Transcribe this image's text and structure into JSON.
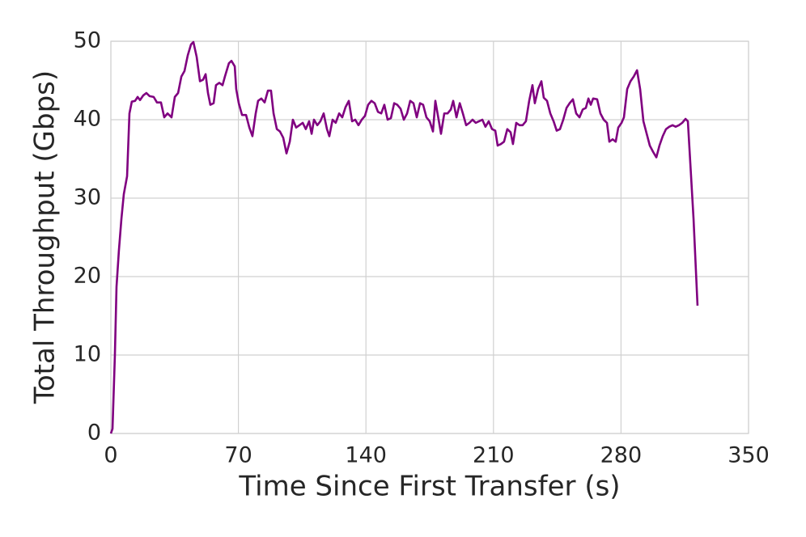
{
  "chart_data": {
    "type": "line",
    "xlabel": "Time Since First Transfer (s)",
    "ylabel": "Total Throughput (Gbps)",
    "xlim": [
      0,
      350
    ],
    "xticks": [
      0,
      70,
      140,
      210,
      280,
      350
    ],
    "ylim": [
      0,
      50
    ],
    "yticks": [
      0,
      10,
      20,
      30,
      40,
      50
    ],
    "grid": true,
    "series": [
      {
        "color": "#800080",
        "x": [
          0,
          0.9,
          2.2,
          3.1,
          4.4,
          5.8,
          7.1,
          8.9,
          10.2,
          11.5,
          13.3,
          14.7,
          16,
          17.8,
          19.5,
          21.3,
          23.5,
          25.3,
          27.5,
          29.3,
          31.1,
          33.3,
          35.1,
          36.9,
          38.7,
          40.4,
          42.2,
          44,
          45.3,
          47.1,
          48.9,
          50.6,
          52,
          53.3,
          54.6,
          56.4,
          57.7,
          59.5,
          61.3,
          62.6,
          64.8,
          66.2,
          68,
          68.8,
          70.2,
          72,
          74.2,
          76,
          77.7,
          79.5,
          80.8,
          82.6,
          84.4,
          86.2,
          87.9,
          89.3,
          91.1,
          92.8,
          94.6,
          96.4,
          98.2,
          99.9,
          101.7,
          103.5,
          105.3,
          107,
          108.8,
          110.2,
          111.5,
          113.3,
          115,
          116.8,
          118.6,
          119.9,
          121.7,
          123.4,
          125.3,
          127,
          128.8,
          130.6,
          132.4,
          134.1,
          135.9,
          137.7,
          139.5,
          141.2,
          143,
          144.8,
          146.6,
          148.4,
          150.1,
          151.9,
          153.7,
          155.5,
          157.2,
          159,
          160.8,
          162.6,
          164.3,
          166.1,
          167.9,
          169.7,
          171.4,
          173.2,
          175,
          176.8,
          178.1,
          179.9,
          181.2,
          183,
          184.8,
          186.6,
          187.9,
          189.7,
          191.5,
          193.2,
          195,
          196.8,
          198.5,
          200.3,
          202.1,
          203.9,
          205.6,
          207.4,
          209.2,
          211,
          212.3,
          214.1,
          215.8,
          217.6,
          219.4,
          220.7,
          222.5,
          224.3,
          226,
          227.8,
          229.6,
          231.4,
          232.7,
          234.5,
          236.3,
          237.6,
          239.4,
          241.2,
          243,
          244.7,
          246.5,
          248.3,
          250.1,
          251.8,
          253.6,
          255.4,
          257.2,
          259,
          260.7,
          262.1,
          263.4,
          264.7,
          266.9,
          268.7,
          270.5,
          272.3,
          273.6,
          275.4,
          277.1,
          278.5,
          280.3,
          281.6,
          283.4,
          285.2,
          287,
          288.8,
          290.5,
          292.3,
          294.1,
          295.8,
          297.6,
          299.4,
          301.1,
          302.9,
          304.7,
          306.5,
          308.3,
          310,
          311.8,
          313.6,
          315.4,
          316.7,
          319.8,
          322
        ],
        "values": [
          0,
          0.6,
          9.9,
          18.7,
          23.3,
          27.4,
          30.5,
          32.8,
          40.8,
          42.3,
          42.4,
          42.9,
          42.5,
          43.1,
          43.4,
          43,
          42.9,
          42.2,
          42.2,
          40.3,
          40.8,
          40.3,
          42.9,
          43.4,
          45.5,
          46.2,
          48.2,
          49.6,
          49.9,
          48,
          44.9,
          45.1,
          45.8,
          43.4,
          41.9,
          42.1,
          44.4,
          44.7,
          44.4,
          45.5,
          47.2,
          47.5,
          46.8,
          43.9,
          42.1,
          40.6,
          40.6,
          39,
          37.9,
          40.8,
          42.4,
          42.7,
          42.2,
          43.7,
          43.7,
          40.8,
          38.8,
          38.5,
          37.7,
          35.7,
          37.2,
          40,
          39,
          39.3,
          39.6,
          38.8,
          39.8,
          38.2,
          40,
          39.3,
          39.8,
          40.8,
          38.8,
          37.9,
          40,
          39.6,
          40.8,
          40.3,
          41.6,
          42.4,
          39.8,
          40,
          39.3,
          40,
          40.5,
          41.9,
          42.4,
          42.1,
          41,
          40.8,
          41.9,
          40,
          40.2,
          42.1,
          41.9,
          41.4,
          40,
          40.8,
          42.4,
          42.1,
          40.3,
          42.1,
          41.9,
          40.3,
          39.8,
          38.5,
          42.4,
          40,
          38.2,
          40.8,
          40.8,
          41.3,
          42.4,
          40.3,
          42.1,
          40.8,
          39.3,
          39.6,
          40,
          39.6,
          39.8,
          40,
          39.1,
          39.8,
          38.8,
          38.6,
          36.7,
          36.9,
          37.2,
          38.8,
          38.4,
          36.9,
          39.6,
          39.3,
          39.3,
          39.8,
          42.4,
          44.4,
          42.1,
          43.9,
          44.9,
          42.8,
          42.4,
          40.8,
          39.8,
          38.6,
          38.8,
          40,
          41.5,
          42.1,
          42.6,
          40.8,
          40.3,
          41.3,
          41.5,
          42.7,
          41.9,
          42.7,
          42.6,
          40.8,
          40,
          39.6,
          37.2,
          37.5,
          37.2,
          39,
          39.6,
          40.3,
          43.9,
          44.9,
          45.5,
          46.3,
          43.9,
          39.8,
          38.2,
          36.7,
          35.9,
          35.2,
          36.7,
          37.9,
          38.8,
          39.1,
          39.3,
          39.1,
          39.3,
          39.6,
          40.1,
          39.8,
          27.4,
          16.3
        ]
      }
    ]
  }
}
